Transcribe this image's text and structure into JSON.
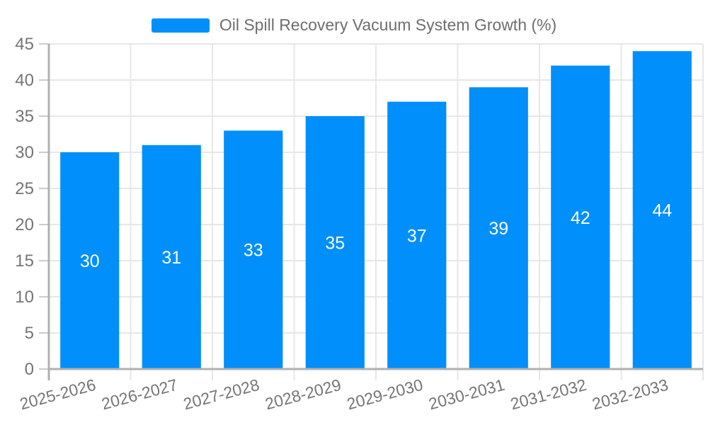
{
  "legend": {
    "label": "Oil Spill Recovery Vacuum System Growth (%)",
    "position": "top"
  },
  "chart_data": {
    "type": "bar",
    "title": "Oil Spill Recovery Vacuum System Growth (%)",
    "categories": [
      "2025-2026",
      "2026-2027",
      "2027-2028",
      "2028-2029",
      "2029-2030",
      "2030-2031",
      "2031-2032",
      "2032-2033"
    ],
    "series": [
      {
        "name": "Oil Spill Recovery Vacuum System Growth (%)",
        "values": [
          30,
          31,
          33,
          35,
          37,
          39,
          42,
          44
        ]
      }
    ],
    "value_labels": [
      "30",
      "31",
      "33",
      "35",
      "37",
      "39",
      "42",
      "44"
    ],
    "xlabel": "",
    "ylabel": "",
    "ylim": [
      0,
      45
    ],
    "ytick_step": 5,
    "ytick_labels": [
      "0",
      "5",
      "10",
      "15",
      "20",
      "25",
      "30",
      "35",
      "40",
      "45"
    ],
    "grid": true,
    "legend_position": "top",
    "x_label_rotation": -15,
    "colors": {
      "bar": "#008FFB",
      "value_label": "#ffffff",
      "gridline": "#e7e7e7",
      "axis_line": "#b0b0b0",
      "tick": "#cccccc",
      "axis_label": "#757575",
      "legend_text": "#6e6e6e",
      "background": "#ffffff"
    }
  }
}
